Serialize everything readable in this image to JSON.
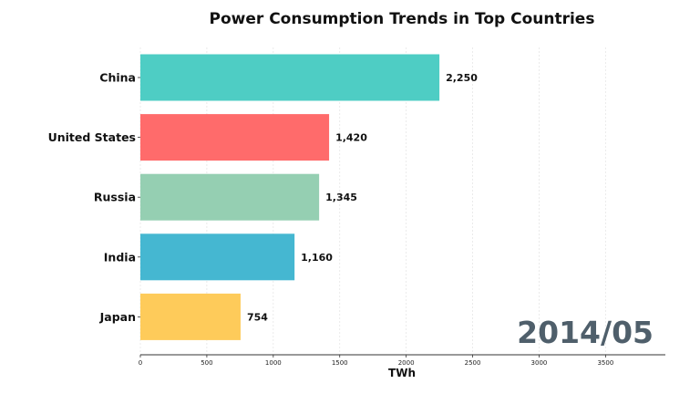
{
  "chart_data": {
    "type": "bar",
    "orientation": "horizontal",
    "title": "Power Consumption Trends in Top Countries",
    "xlabel": "TWh",
    "ylabel": "",
    "period": "2014/05",
    "categories": [
      "China",
      "United States",
      "Russia",
      "India",
      "Japan"
    ],
    "values": [
      2250,
      1420,
      1345,
      1160,
      754
    ],
    "value_labels": [
      "2,250",
      "1,420",
      "1,345",
      "1,160",
      "754"
    ],
    "colors": [
      "#4ECDC4",
      "#FF6B6B",
      "#95CFB2",
      "#45B7D1",
      "#FECB5A"
    ],
    "xlim": [
      0,
      3950
    ],
    "xticks": [
      0,
      500,
      1000,
      1500,
      2000,
      2500,
      3000,
      3500
    ],
    "xtick_labels": [
      "0",
      "500",
      "1000",
      "1500",
      "2000",
      "2500",
      "3000",
      "3500"
    ],
    "grid": "vertical"
  }
}
